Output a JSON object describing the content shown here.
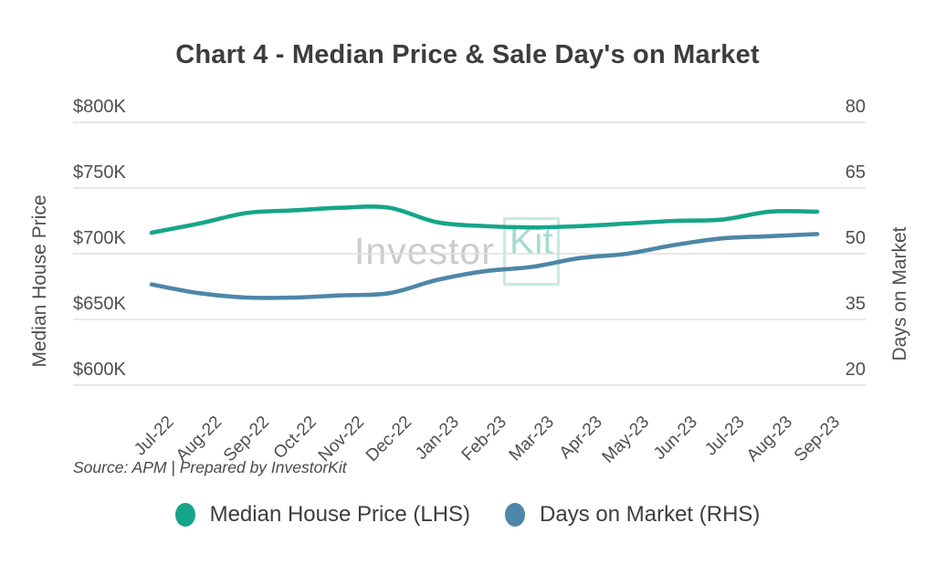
{
  "title": "Chart 4 - Median Price & Sale Day's on Market",
  "watermark": {
    "part1": "Investor",
    "part2": "Kit"
  },
  "source_note": "Source: APM | Prepared by InvestorKit",
  "colors": {
    "price_line": "#17a589",
    "days_line": "#4d86a8",
    "grid": "#e0e0e0",
    "title_text": "#3d3d3d",
    "axis_text": "#4f4f4f"
  },
  "chart_data": {
    "type": "line",
    "title": "Chart 4 - Median Price & Sale Day's on Market",
    "categories": [
      "Jul-22",
      "Aug-22",
      "Sep-22",
      "Oct-22",
      "Nov-22",
      "Dec-22",
      "Jan-23",
      "Feb-23",
      "Mar-23",
      "Apr-23",
      "May-23",
      "Jun-23",
      "Jul-23",
      "Aug-23",
      "Sep-23"
    ],
    "series": [
      {
        "name": "Median House Price (LHS)",
        "axis": "left",
        "unit": "USD thousands",
        "color": "#17a589",
        "values": [
          716,
          723,
          731,
          733,
          735,
          735,
          724,
          721,
          720,
          721,
          723,
          725,
          726,
          732,
          732
        ]
      },
      {
        "name": "Days on Market (RHS)",
        "axis": "right",
        "unit": "days",
        "color": "#4d86a8",
        "values": [
          43,
          41,
          40,
          40,
          40.5,
          41,
          44,
          46,
          47,
          49,
          50,
          52,
          53.5,
          54,
          54.5
        ]
      }
    ],
    "left_axis": {
      "label": "Median House Price",
      "ticks": [
        "$800K",
        "$750K",
        "$700K",
        "$650K",
        "$600K"
      ],
      "min": 600,
      "max": 800
    },
    "right_axis": {
      "label": "Days on Market",
      "ticks": [
        "80",
        "65",
        "50",
        "35",
        "20"
      ],
      "min": 20,
      "max": 80
    },
    "grid": true,
    "legend_position": "bottom",
    "legend": [
      "Median House Price (LHS)",
      "Days on Market (RHS)"
    ]
  }
}
